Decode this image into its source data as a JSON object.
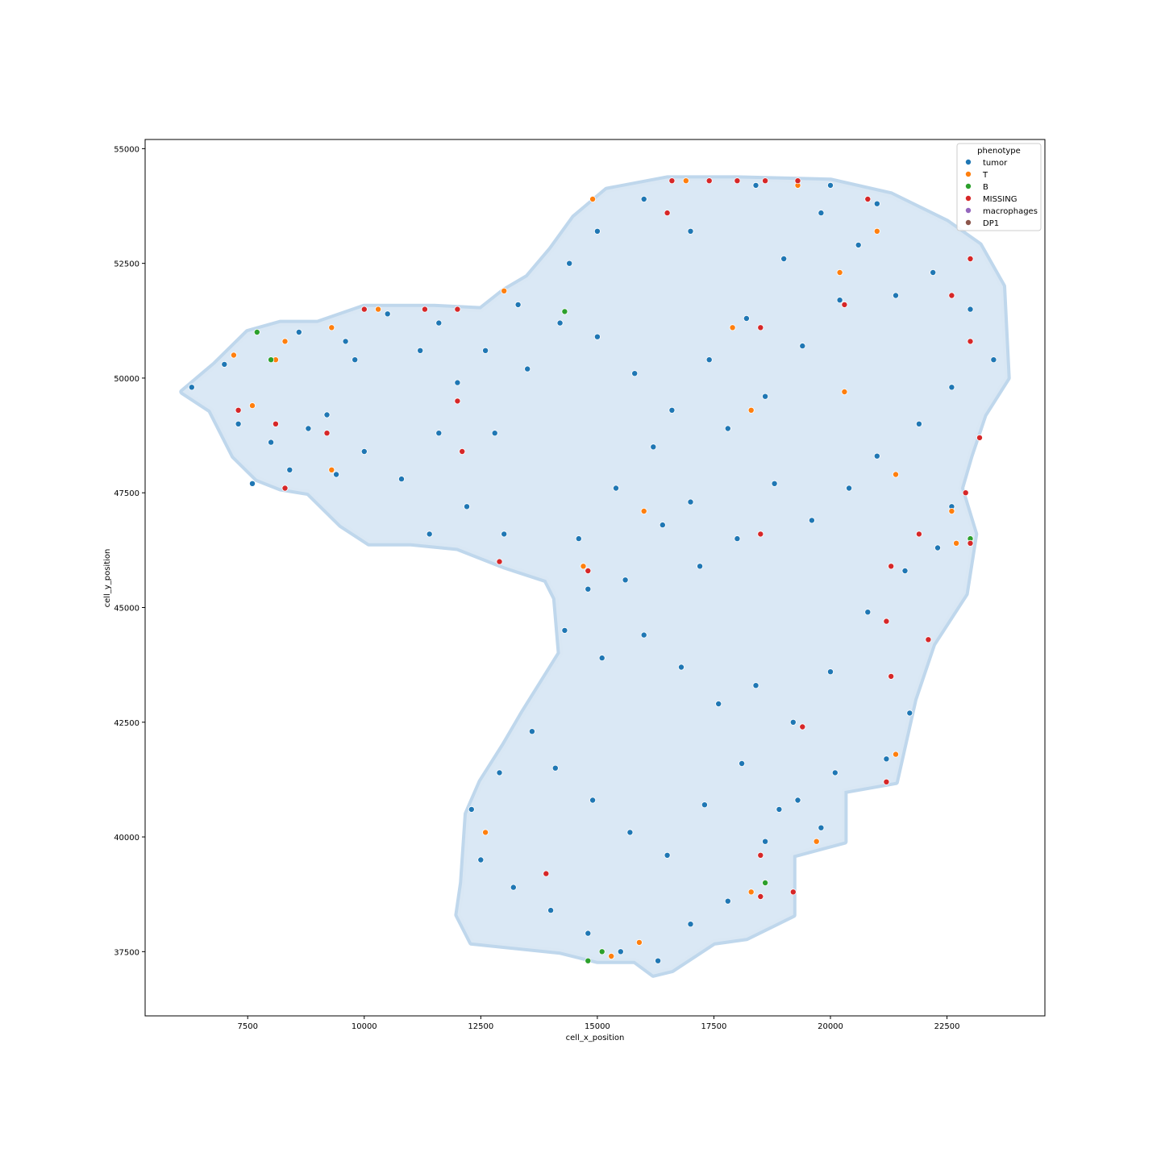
{
  "chart_data": {
    "type": "scatter",
    "xlabel": "cell_x_position",
    "ylabel": "cell_y_position",
    "xlim": [
      5300,
      24600
    ],
    "ylim": [
      36100,
      55200
    ],
    "xticks": [
      7500,
      10000,
      12500,
      15000,
      17500,
      20000,
      22500
    ],
    "yticks": [
      37500,
      40000,
      42500,
      45000,
      47500,
      50000,
      52500,
      55000
    ],
    "grid": false,
    "legend": {
      "title": "phenotype",
      "placement": "top-right",
      "entries": [
        {
          "name": "tumor",
          "color": "#1f77b4"
        },
        {
          "name": "T",
          "color": "#ff7f0e"
        },
        {
          "name": "B",
          "color": "#2ca02c"
        },
        {
          "name": "MISSING",
          "color": "#d62728"
        },
        {
          "name": "macrophages",
          "color": "#9467bd"
        },
        {
          "name": "DP1",
          "color": "#8c564b"
        }
      ]
    },
    "tissue_outline": [
      [
        6100,
        49700
      ],
      [
        6800,
        50300
      ],
      [
        7500,
        51000
      ],
      [
        8200,
        51200
      ],
      [
        9000,
        51200
      ],
      [
        10000,
        51550
      ],
      [
        11500,
        51550
      ],
      [
        12500,
        51500
      ],
      [
        13000,
        51900
      ],
      [
        13500,
        52200
      ],
      [
        14000,
        52800
      ],
      [
        14500,
        53500
      ],
      [
        15200,
        54100
      ],
      [
        16500,
        54350
      ],
      [
        18000,
        54350
      ],
      [
        20000,
        54300
      ],
      [
        21300,
        54000
      ],
      [
        22500,
        53400
      ],
      [
        23200,
        52900
      ],
      [
        23700,
        52000
      ],
      [
        23800,
        50000
      ],
      [
        23300,
        49200
      ],
      [
        23000,
        48300
      ],
      [
        22800,
        47600
      ],
      [
        23100,
        46600
      ],
      [
        22900,
        45300
      ],
      [
        22200,
        44200
      ],
      [
        21800,
        43000
      ],
      [
        21400,
        41200
      ],
      [
        20300,
        41000
      ],
      [
        20300,
        39900
      ],
      [
        19200,
        39600
      ],
      [
        19200,
        38300
      ],
      [
        18200,
        37800
      ],
      [
        17500,
        37700
      ],
      [
        16600,
        37100
      ],
      [
        16200,
        37000
      ],
      [
        15800,
        37300
      ],
      [
        15000,
        37300
      ],
      [
        14200,
        37500
      ],
      [
        12300,
        37700
      ],
      [
        12000,
        38300
      ],
      [
        12100,
        39000
      ],
      [
        12200,
        40500
      ],
      [
        12500,
        41200
      ],
      [
        13000,
        42000
      ],
      [
        13400,
        42700
      ],
      [
        14200,
        44000
      ],
      [
        14100,
        45200
      ],
      [
        13900,
        45600
      ],
      [
        13000,
        45900
      ],
      [
        12000,
        46300
      ],
      [
        11000,
        46400
      ],
      [
        10100,
        46400
      ],
      [
        9500,
        46800
      ],
      [
        8800,
        47500
      ],
      [
        8200,
        47600
      ],
      [
        7700,
        47800
      ],
      [
        7200,
        48300
      ],
      [
        6700,
        49300
      ],
      [
        6100,
        49700
      ]
    ],
    "series": [
      {
        "name": "tumor",
        "color": "#1f77b4",
        "points": [
          [
            6300,
            49800
          ],
          [
            7000,
            50300
          ],
          [
            7300,
            49000
          ],
          [
            8000,
            48600
          ],
          [
            7600,
            47700
          ],
          [
            8400,
            48000
          ],
          [
            9200,
            49200
          ],
          [
            9800,
            50400
          ],
          [
            10500,
            51400
          ],
          [
            11200,
            50600
          ],
          [
            12000,
            49900
          ],
          [
            12800,
            48800
          ],
          [
            13500,
            50200
          ],
          [
            14200,
            51200
          ],
          [
            15000,
            50900
          ],
          [
            15800,
            50100
          ],
          [
            16600,
            49300
          ],
          [
            17400,
            50400
          ],
          [
            18200,
            51300
          ],
          [
            19000,
            52600
          ],
          [
            19800,
            53600
          ],
          [
            20600,
            52900
          ],
          [
            21400,
            51800
          ],
          [
            22200,
            52300
          ],
          [
            23000,
            51500
          ],
          [
            23500,
            50400
          ],
          [
            22600,
            49800
          ],
          [
            21900,
            49000
          ],
          [
            21000,
            48300
          ],
          [
            20400,
            47600
          ],
          [
            19600,
            46900
          ],
          [
            18800,
            47700
          ],
          [
            18000,
            46500
          ],
          [
            17200,
            45900
          ],
          [
            16400,
            46800
          ],
          [
            15600,
            45600
          ],
          [
            14800,
            45400
          ],
          [
            14300,
            44500
          ],
          [
            15100,
            43900
          ],
          [
            16000,
            44400
          ],
          [
            16800,
            43700
          ],
          [
            17600,
            42900
          ],
          [
            18400,
            43300
          ],
          [
            19200,
            42500
          ],
          [
            20000,
            43600
          ],
          [
            20800,
            44900
          ],
          [
            21600,
            45800
          ],
          [
            22300,
            46300
          ],
          [
            22600,
            47200
          ],
          [
            21700,
            42700
          ],
          [
            21200,
            41700
          ],
          [
            20100,
            41400
          ],
          [
            19300,
            40800
          ],
          [
            18600,
            39900
          ],
          [
            17800,
            38600
          ],
          [
            17000,
            38100
          ],
          [
            16300,
            37300
          ],
          [
            15500,
            37500
          ],
          [
            14800,
            37900
          ],
          [
            14000,
            38400
          ],
          [
            13200,
            38900
          ],
          [
            12500,
            39500
          ],
          [
            12300,
            40600
          ],
          [
            12900,
            41400
          ],
          [
            13600,
            42300
          ],
          [
            14100,
            41500
          ],
          [
            14900,
            40800
          ],
          [
            15700,
            40100
          ],
          [
            16500,
            39600
          ],
          [
            17300,
            40700
          ],
          [
            18100,
            41600
          ],
          [
            18900,
            40600
          ],
          [
            19800,
            40200
          ],
          [
            10000,
            48400
          ],
          [
            10800,
            47800
          ],
          [
            11600,
            48800
          ],
          [
            12200,
            47200
          ],
          [
            13000,
            46600
          ],
          [
            11400,
            46600
          ],
          [
            9400,
            47900
          ],
          [
            8800,
            48900
          ],
          [
            14600,
            46500
          ],
          [
            15400,
            47600
          ],
          [
            16200,
            48500
          ],
          [
            17000,
            47300
          ],
          [
            17800,
            48900
          ],
          [
            18600,
            49600
          ],
          [
            19400,
            50700
          ],
          [
            20200,
            51700
          ],
          [
            21000,
            53800
          ],
          [
            17000,
            53200
          ],
          [
            16000,
            53900
          ],
          [
            15000,
            53200
          ],
          [
            14400,
            52500
          ],
          [
            18400,
            54200
          ],
          [
            20000,
            54200
          ],
          [
            13300,
            51600
          ],
          [
            12600,
            50600
          ],
          [
            11600,
            51200
          ],
          [
            8600,
            51000
          ],
          [
            9600,
            50800
          ]
        ]
      },
      {
        "name": "T",
        "color": "#ff7f0e",
        "points": [
          [
            7200,
            50500
          ],
          [
            7600,
            49400
          ],
          [
            8300,
            50800
          ],
          [
            9300,
            51100
          ],
          [
            10300,
            51500
          ],
          [
            13000,
            51900
          ],
          [
            14900,
            53900
          ],
          [
            17900,
            51100
          ],
          [
            18300,
            49300
          ],
          [
            20300,
            49700
          ],
          [
            21400,
            47900
          ],
          [
            22600,
            47100
          ],
          [
            22700,
            46400
          ],
          [
            20200,
            52300
          ],
          [
            21000,
            53200
          ],
          [
            16000,
            47100
          ],
          [
            14700,
            45900
          ],
          [
            15900,
            37700
          ],
          [
            15300,
            37400
          ],
          [
            18300,
            38800
          ],
          [
            19700,
            39900
          ],
          [
            21400,
            41800
          ],
          [
            12600,
            40100
          ],
          [
            9300,
            48000
          ],
          [
            8100,
            50400
          ],
          [
            19300,
            54200
          ],
          [
            16900,
            54300
          ]
        ]
      },
      {
        "name": "B",
        "color": "#2ca02c",
        "points": [
          [
            7700,
            51000
          ],
          [
            8000,
            50400
          ],
          [
            14300,
            51450
          ],
          [
            15100,
            37500
          ],
          [
            14800,
            37300
          ],
          [
            18600,
            39000
          ],
          [
            23000,
            46500
          ]
        ]
      },
      {
        "name": "MISSING",
        "color": "#d62728",
        "points": [
          [
            7300,
            49300
          ],
          [
            8100,
            49000
          ],
          [
            8300,
            47600
          ],
          [
            9200,
            48800
          ],
          [
            12000,
            49500
          ],
          [
            12100,
            48400
          ],
          [
            12900,
            46000
          ],
          [
            14800,
            45800
          ],
          [
            16600,
            54300
          ],
          [
            17400,
            54300
          ],
          [
            18000,
            54300
          ],
          [
            18600,
            54300
          ],
          [
            19300,
            54300
          ],
          [
            16500,
            53600
          ],
          [
            18500,
            51100
          ],
          [
            20300,
            51600
          ],
          [
            22600,
            51800
          ],
          [
            23000,
            52600
          ],
          [
            23200,
            48700
          ],
          [
            22900,
            47500
          ],
          [
            23000,
            46400
          ],
          [
            21900,
            46600
          ],
          [
            21300,
            45900
          ],
          [
            21200,
            44700
          ],
          [
            22100,
            44300
          ],
          [
            21300,
            43500
          ],
          [
            21200,
            41200
          ],
          [
            19400,
            42400
          ],
          [
            18500,
            46600
          ],
          [
            18500,
            39600
          ],
          [
            18500,
            38700
          ],
          [
            19200,
            38800
          ],
          [
            13900,
            39200
          ],
          [
            10000,
            51500
          ],
          [
            11300,
            51500
          ],
          [
            12000,
            51500
          ],
          [
            20800,
            53900
          ],
          [
            23000,
            50800
          ]
        ]
      },
      {
        "name": "macrophages",
        "color": "#9467bd",
        "points": []
      },
      {
        "name": "DP1",
        "color": "#8c564b",
        "points": []
      }
    ]
  }
}
